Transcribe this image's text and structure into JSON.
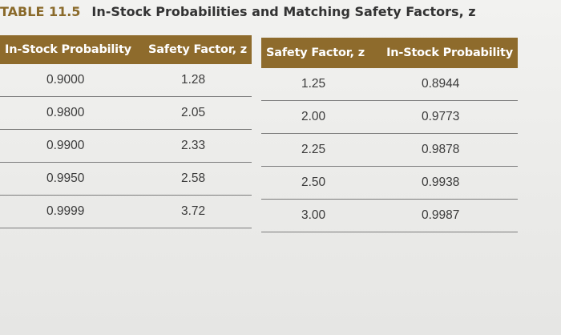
{
  "caption": {
    "number": "TABLE 11.5",
    "title": "In-Stock Probabilities and Matching Safety Factors, z"
  },
  "left_table": {
    "headers": [
      "In-Stock Probability",
      "Safety Factor, z"
    ],
    "rows": [
      [
        "0.9000",
        "1.28"
      ],
      [
        "0.9800",
        "2.05"
      ],
      [
        "0.9900",
        "2.33"
      ],
      [
        "0.9950",
        "2.58"
      ],
      [
        "0.9999",
        "3.72"
      ]
    ]
  },
  "right_table": {
    "headers": [
      "Safety Factor, z",
      "In-Stock Probability"
    ],
    "rows": [
      [
        "1.25",
        "0.8944"
      ],
      [
        "2.00",
        "0.9773"
      ],
      [
        "2.25",
        "0.9878"
      ],
      [
        "2.50",
        "0.9938"
      ],
      [
        "3.00",
        "0.9987"
      ]
    ]
  },
  "colors": {
    "header_bg": "#8e6b2c",
    "header_text": "#ffffff",
    "rule": "#7c7c7c"
  }
}
